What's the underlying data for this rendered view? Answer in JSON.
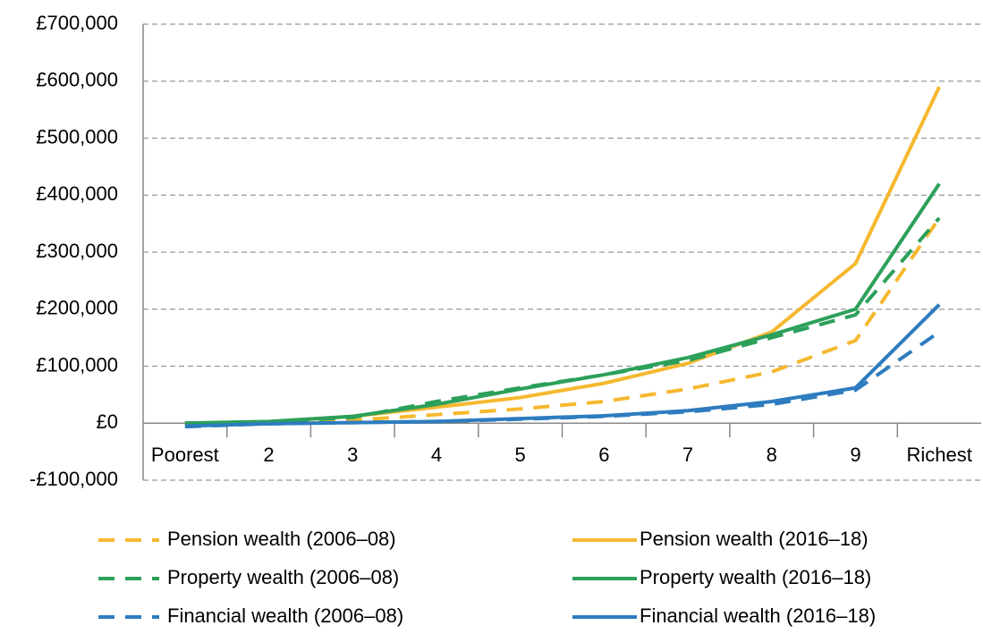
{
  "chart_data": {
    "type": "line",
    "categories": [
      "Poorest",
      "2",
      "3",
      "4",
      "5",
      "6",
      "7",
      "8",
      "9",
      "Richest"
    ],
    "series": [
      {
        "name": "Pension wealth (2006–08)",
        "color": "#f5b82e",
        "style": "dashed",
        "values": [
          0,
          1000,
          5000,
          15000,
          25000,
          38000,
          60000,
          90000,
          145000,
          360000
        ]
      },
      {
        "name": "Pension wealth (2016–18)",
        "color": "#f5b82e",
        "style": "solid",
        "values": [
          0,
          2000,
          12000,
          28000,
          45000,
          70000,
          105000,
          160000,
          280000,
          590000
        ]
      },
      {
        "name": "Property wealth (2006–08)",
        "color": "#2ca05a",
        "style": "dashed",
        "values": [
          0,
          2000,
          10000,
          38000,
          62000,
          85000,
          110000,
          150000,
          190000,
          360000
        ]
      },
      {
        "name": "Property wealth (2016–18)",
        "color": "#2ca05a",
        "style": "solid",
        "values": [
          0,
          3000,
          12000,
          33000,
          60000,
          85000,
          115000,
          155000,
          200000,
          420000
        ]
      },
      {
        "name": "Financial wealth (2006–08)",
        "color": "#2e7cbf",
        "style": "dashed",
        "values": [
          -6000,
          -1000,
          1000,
          3000,
          7000,
          12000,
          20000,
          33000,
          58000,
          160000
        ]
      },
      {
        "name": "Financial wealth (2016–18)",
        "color": "#2e7cbf",
        "style": "solid",
        "values": [
          -5000,
          -1000,
          1000,
          3000,
          8000,
          13000,
          22000,
          38000,
          62000,
          208000
        ]
      }
    ],
    "ylim": [
      -100000,
      700000
    ],
    "yticks": [
      {
        "value": -100000,
        "label": "-£100,000"
      },
      {
        "value": 0,
        "label": "£0"
      },
      {
        "value": 100000,
        "label": "£100,000"
      },
      {
        "value": 200000,
        "label": "£200,000"
      },
      {
        "value": 300000,
        "label": "£300,000"
      },
      {
        "value": 400000,
        "label": "£400,000"
      },
      {
        "value": 500000,
        "label": "£500,000"
      },
      {
        "value": 600000,
        "label": "£600,000"
      },
      {
        "value": 700000,
        "label": "£700,000"
      }
    ],
    "grid": true
  }
}
